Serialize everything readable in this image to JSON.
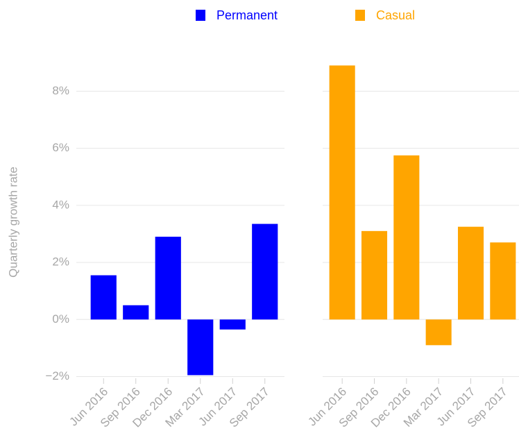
{
  "y_label": "Quarterly growth rate",
  "chart_data": [
    {
      "type": "bar",
      "categories": [
        "Jun 2016",
        "Sep 2016",
        "Dec 2016",
        "Mar 2017",
        "Jun 2017",
        "Sep 2017"
      ],
      "series": [
        {
          "name": "Permanent",
          "color": "#0000ff",
          "values": [
            1.55,
            0.5,
            2.9,
            -1.95,
            -0.35,
            3.35
          ]
        }
      ],
      "ylim": [
        -2.4,
        9.2
      ],
      "yticks": [
        {
          "value": -2,
          "label": "−2%"
        },
        {
          "value": 0,
          "label": "0%"
        },
        {
          "value": 2,
          "label": "2%"
        },
        {
          "value": 4,
          "label": "4%"
        },
        {
          "value": 6,
          "label": "6%"
        },
        {
          "value": 8,
          "label": "8%"
        }
      ],
      "grid": true
    },
    {
      "type": "bar",
      "categories": [
        "Jun 2016",
        "Sep 2016",
        "Dec 2016",
        "Mar 2017",
        "Jun 2017",
        "Sep 2017"
      ],
      "series": [
        {
          "name": "Casual",
          "color": "#ffa500",
          "values": [
            8.9,
            3.1,
            5.75,
            -0.9,
            3.25,
            2.7
          ]
        }
      ],
      "ylim": [
        -2.4,
        9.2
      ],
      "yticks": [
        -2,
        0,
        2,
        4,
        6,
        8
      ],
      "grid": true
    }
  ]
}
